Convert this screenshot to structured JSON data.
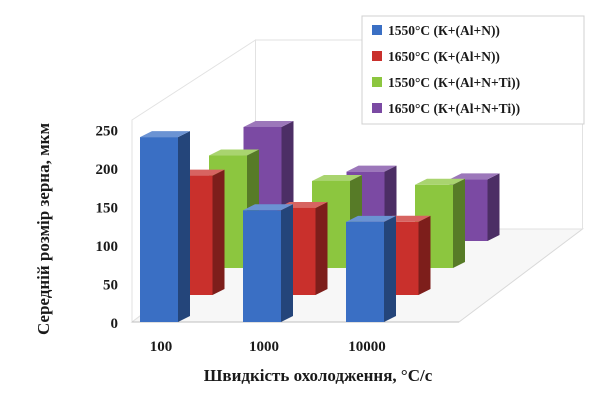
{
  "chart_data": {
    "type": "bar",
    "style": "3d-clustered-depth",
    "categories": [
      "100",
      "1000",
      "10000"
    ],
    "series": [
      {
        "name": "1550°C (К+(Al+N))",
        "values": [
          240,
          145,
          130
        ],
        "color": "#3a6fc4"
      },
      {
        "name": "1650°C (К+(Al+N))",
        "values": [
          155,
          113,
          95
        ],
        "color": "#c9302c"
      },
      {
        "name": "1550°C (К+(Al+N+Ti))",
        "values": [
          146,
          113,
          108
        ],
        "color": "#8cc63f"
      },
      {
        "name": "1650°C (К+(Al+N+Ti))",
        "values": [
          148,
          90,
          80
        ],
        "color": "#7b4aa3"
      }
    ],
    "xlabel": "Швидкість охолодження, °C/с",
    "ylabel": "Середній розмір зерна, мкм",
    "ylim": [
      0,
      250
    ],
    "yticks": [
      0,
      50,
      100,
      150,
      200,
      250
    ],
    "grid": false,
    "legend_position": "top-right"
  }
}
